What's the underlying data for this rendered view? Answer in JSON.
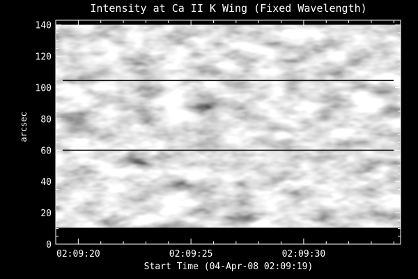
{
  "chart_data": {
    "type": "heatmap",
    "title": "Intensity at Ca II K Wing (Fixed Wavelength)",
    "xlabel": "Start Time (04-Apr-08 02:09:19)",
    "ylabel": "arcsec",
    "x_ticks": [
      "02:09:20",
      "02:09:25",
      "02:09:30"
    ],
    "x_tick_values_s": [
      1,
      6,
      11
    ],
    "xlim_s": [
      0,
      15.3
    ],
    "y_ticks": [
      0,
      20,
      40,
      60,
      80,
      100,
      120,
      140
    ],
    "ylim": [
      0,
      143
    ],
    "data_extent_y": [
      10.5,
      140
    ],
    "colormap": "grayscale",
    "fiducial_lines_arcsec": [
      60,
      104.5
    ],
    "grid": false,
    "legend": "none",
    "colors": {
      "background": "#000000",
      "foreground": "#ffffff"
    }
  }
}
